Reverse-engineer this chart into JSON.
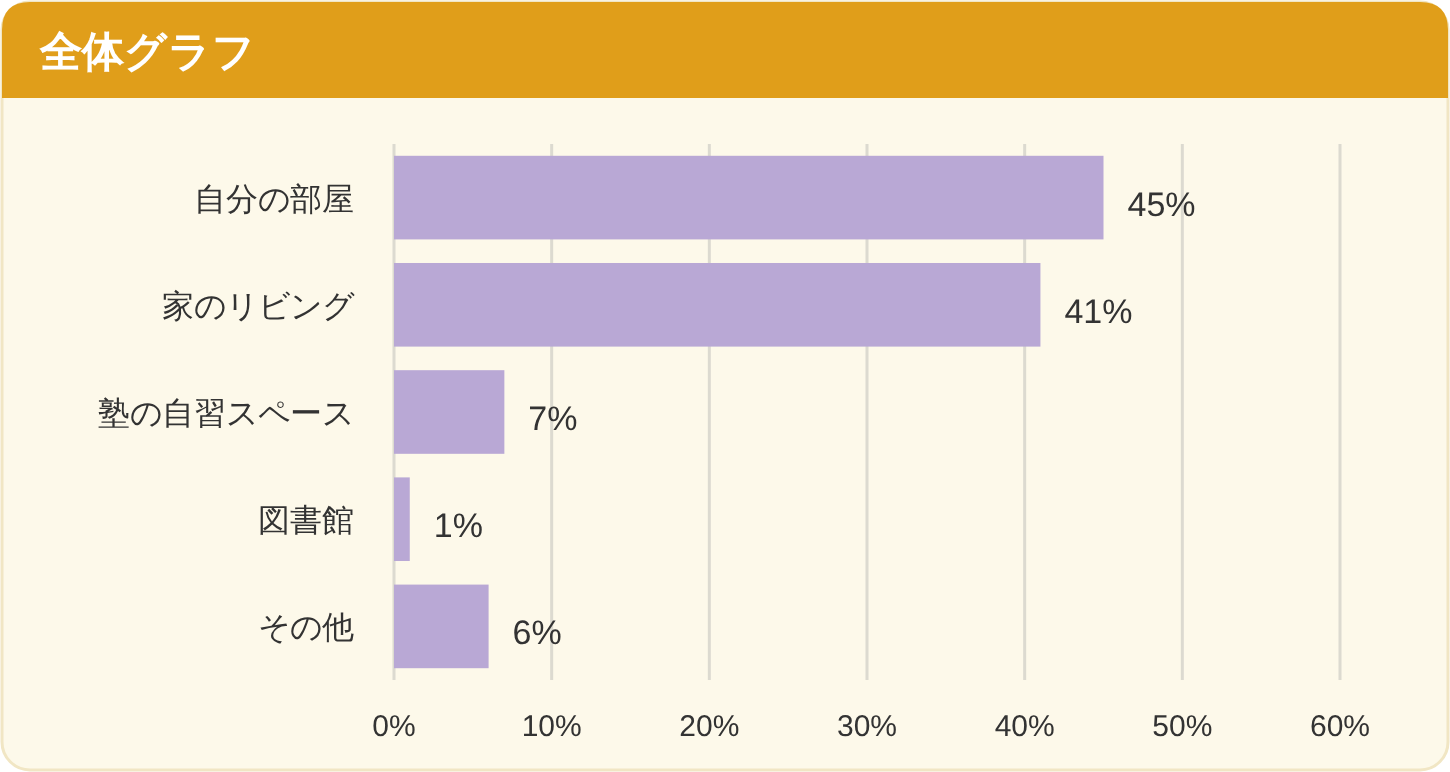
{
  "chart_data": {
    "type": "bar",
    "orientation": "horizontal",
    "title": "全体グラフ",
    "categories": [
      "自分の部屋",
      "家のリビング",
      "塾の自習スペース",
      "図書館",
      "その他"
    ],
    "values": [
      45,
      41,
      7,
      1,
      6
    ],
    "value_labels": [
      "45%",
      "41%",
      "7%",
      "1%",
      "6%"
    ],
    "color": "#b9a8d5",
    "xlim": [
      0,
      60
    ],
    "xticks": [
      {
        "value": 0,
        "label": "0%"
      },
      {
        "value": 10,
        "label": "10%"
      },
      {
        "value": 20,
        "label": "20%"
      },
      {
        "value": 30,
        "label": "30%"
      },
      {
        "value": 40,
        "label": "40%"
      },
      {
        "value": 50,
        "label": "50%"
      },
      {
        "value": 60,
        "label": "60%"
      }
    ],
    "grid": "x"
  }
}
